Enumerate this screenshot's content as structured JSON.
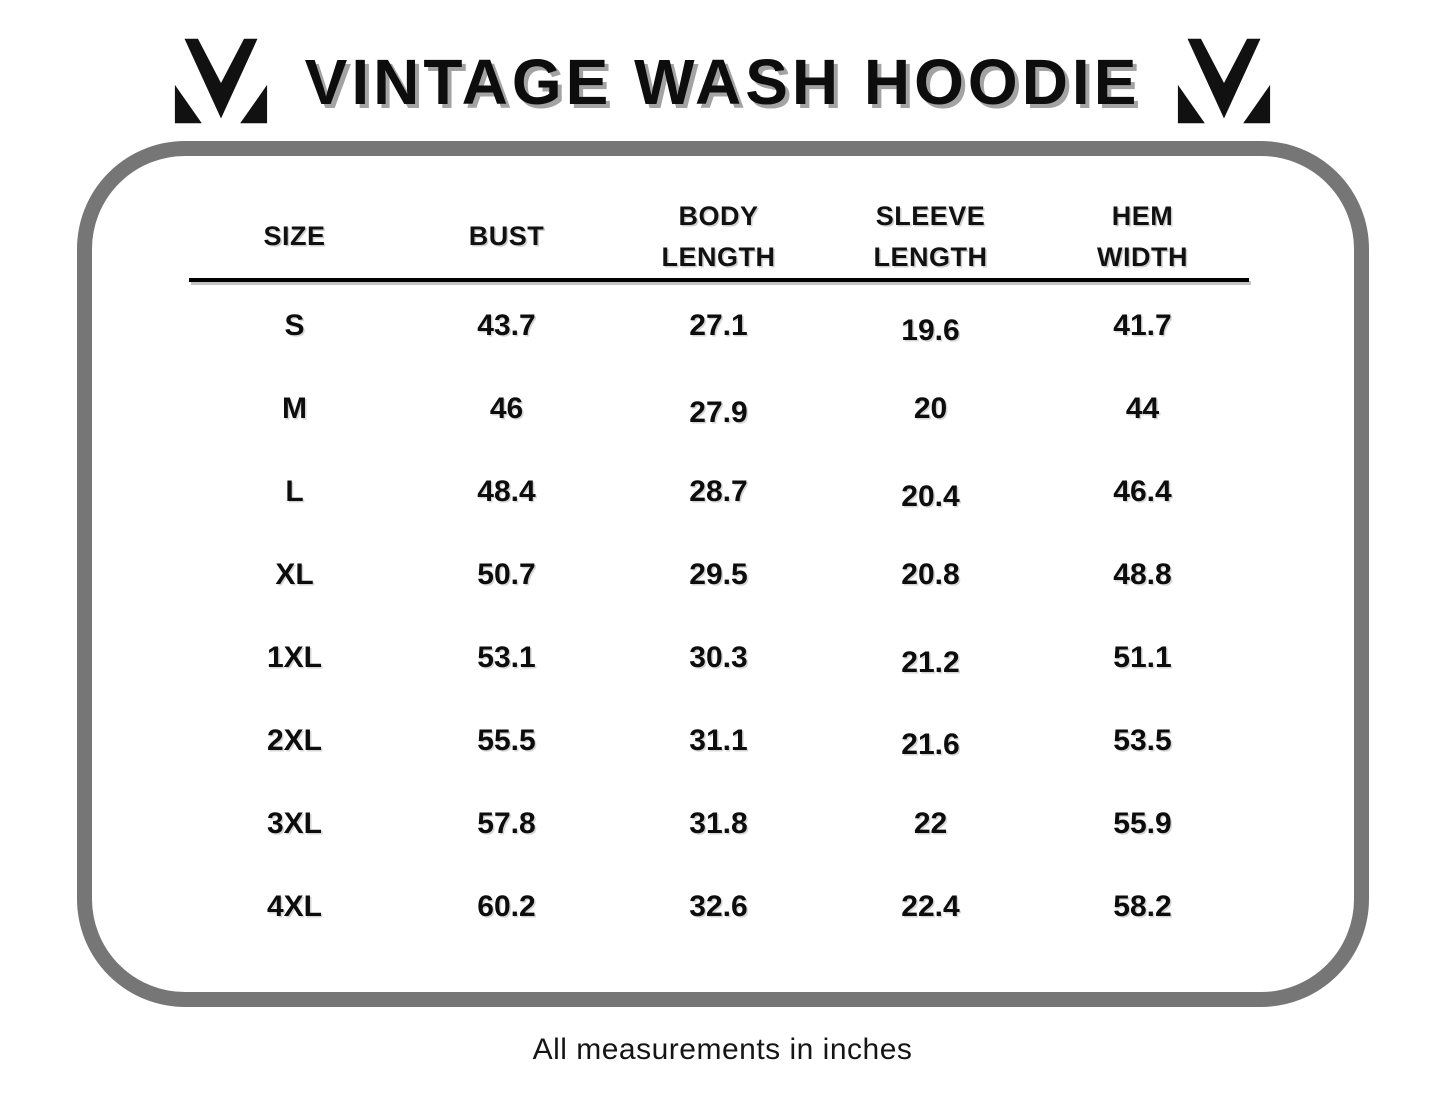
{
  "title": "VINTAGE WASH HOODIE",
  "brand": {
    "logo_name": "m-monogram-logo"
  },
  "footer_note": "All measurements in inches",
  "colors": {
    "panel_border": "#767676",
    "text": "#0d0d0d",
    "title_shadow": "#a3a3a3"
  },
  "table": {
    "columns": [
      "SIZE",
      "BUST",
      "BODY\nLENGTH",
      "SLEEVE\nLENGTH",
      "HEM\nWIDTH"
    ],
    "rows": [
      [
        "S",
        "43.7",
        "27.1",
        "19.6",
        "41.7"
      ],
      [
        "M",
        "46",
        "27.9",
        "20",
        "44"
      ],
      [
        "L",
        "48.4",
        "28.7",
        "20.4",
        "46.4"
      ],
      [
        "XL",
        "50.7",
        "29.5",
        "20.8",
        "48.8"
      ],
      [
        "1XL",
        "53.1",
        "30.3",
        "21.2",
        "51.1"
      ],
      [
        "2XL",
        "55.5",
        "31.1",
        "21.6",
        "53.5"
      ],
      [
        "3XL",
        "57.8",
        "31.8",
        "22",
        "55.9"
      ],
      [
        "4XL",
        "60.2",
        "32.6",
        "22.4",
        "58.2"
      ]
    ]
  },
  "chart_data": {
    "type": "table",
    "title": "VINTAGE WASH HOODIE",
    "columns": [
      "SIZE",
      "BUST",
      "BODY LENGTH",
      "SLEEVE LENGTH",
      "HEM WIDTH"
    ],
    "units": "inches",
    "rows": [
      {
        "size": "S",
        "bust": 43.7,
        "body_length": 27.1,
        "sleeve_length": 19.6,
        "hem_width": 41.7
      },
      {
        "size": "M",
        "bust": 46,
        "body_length": 27.9,
        "sleeve_length": 20,
        "hem_width": 44
      },
      {
        "size": "L",
        "bust": 48.4,
        "body_length": 28.7,
        "sleeve_length": 20.4,
        "hem_width": 46.4
      },
      {
        "size": "XL",
        "bust": 50.7,
        "body_length": 29.5,
        "sleeve_length": 20.8,
        "hem_width": 48.8
      },
      {
        "size": "1XL",
        "bust": 53.1,
        "body_length": 30.3,
        "sleeve_length": 21.2,
        "hem_width": 51.1
      },
      {
        "size": "2XL",
        "bust": 55.5,
        "body_length": 31.1,
        "sleeve_length": 21.6,
        "hem_width": 53.5
      },
      {
        "size": "3XL",
        "bust": 57.8,
        "body_length": 31.8,
        "sleeve_length": 22,
        "hem_width": 55.9
      },
      {
        "size": "4XL",
        "bust": 60.2,
        "body_length": 32.6,
        "sleeve_length": 22.4,
        "hem_width": 58.2
      }
    ],
    "note": "All measurements in inches"
  }
}
